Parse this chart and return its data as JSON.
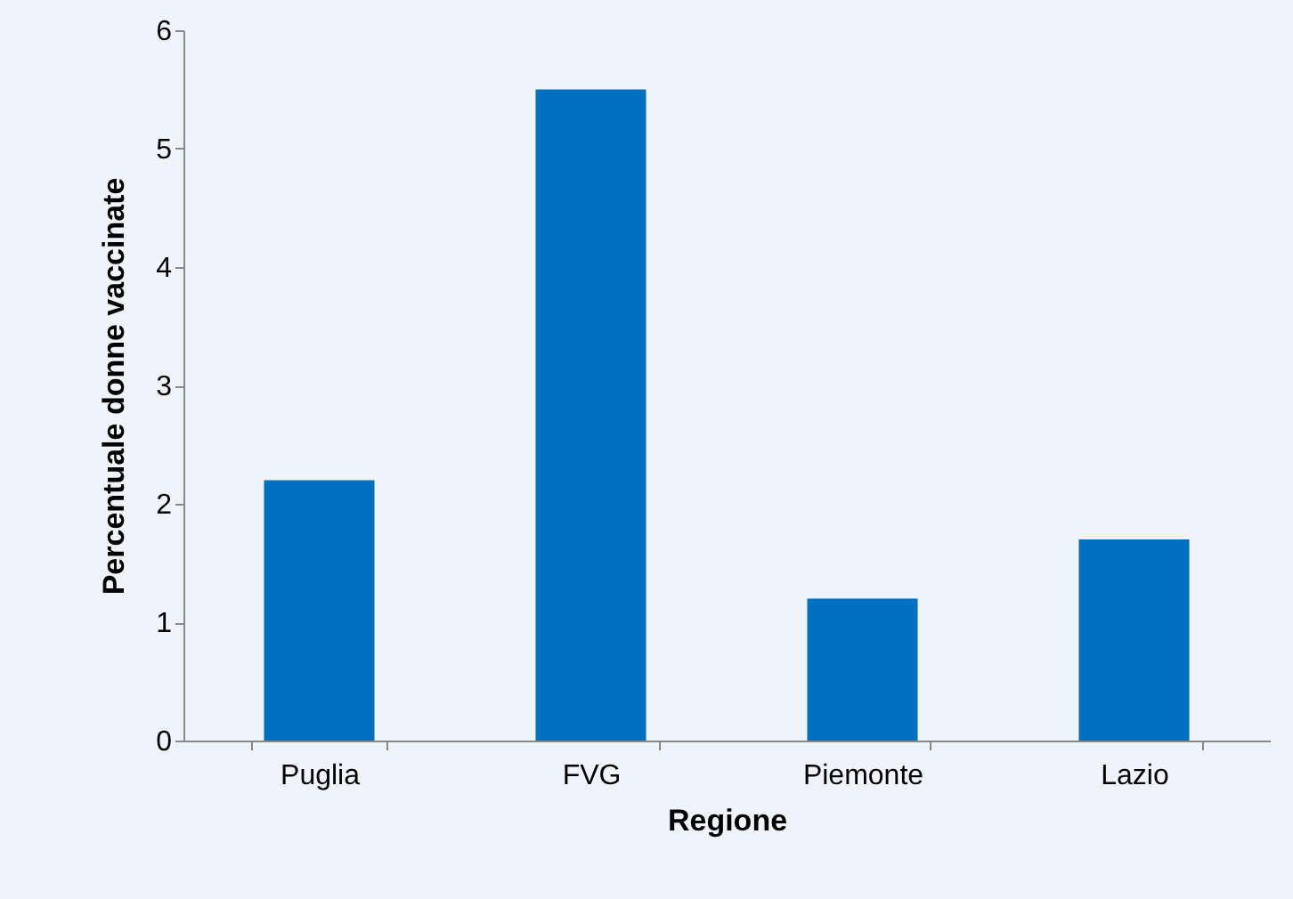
{
  "chart_data": {
    "type": "bar",
    "xlabel": "Regione",
    "ylabel": "Percentuale donne vaccinate",
    "categories": [
      "Puglia",
      "FVG",
      "Piemonte",
      "Lazio"
    ],
    "series": [
      {
        "color": "#0070c0",
        "values": [
          2.2,
          5.5,
          1.2,
          1.7
        ]
      }
    ],
    "ylim": [
      0,
      6
    ],
    "yticks": [
      0,
      1,
      2,
      3,
      4,
      5,
      6
    ],
    "grid": false
  }
}
